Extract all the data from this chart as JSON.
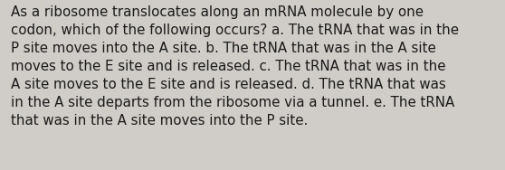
{
  "lines": [
    "As a ribosome translocates along an mRNA molecule by one",
    "codon, which of the following occurs? a. The tRNA that was in the",
    "P site moves into the A site. b. The tRNA that was in the A site",
    "moves to the E site and is released. c. The tRNA that was in the",
    "A site moves to the E site and is released. d. The tRNA that was",
    "in the A site departs from the ribosome via a tunnel. e. The tRNA",
    "that was in the A site moves into the P site."
  ],
  "background_color": "#d0cdc8",
  "text_color": "#1a1a1a",
  "font_size": 10.8,
  "fig_width": 5.58,
  "fig_height": 1.88,
  "dpi": 100
}
